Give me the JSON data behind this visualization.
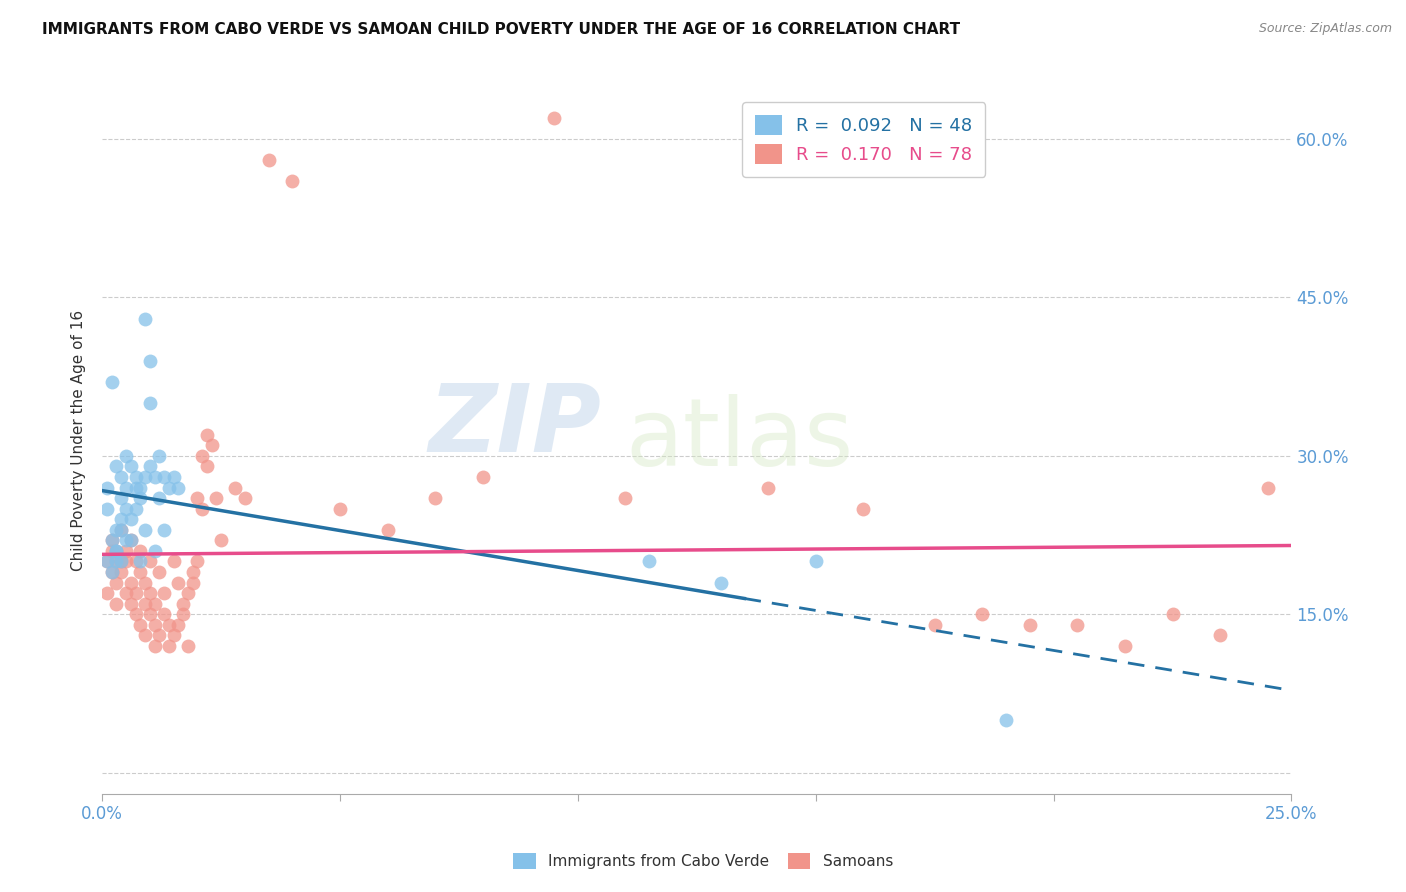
{
  "title": "IMMIGRANTS FROM CABO VERDE VS SAMOAN CHILD POVERTY UNDER THE AGE OF 16 CORRELATION CHART",
  "source": "Source: ZipAtlas.com",
  "ylabel_label": "Child Poverty Under the Age of 16",
  "xlim": [
    0,
    0.25
  ],
  "ylim": [
    -0.02,
    0.65
  ],
  "color_blue": "#85c1e9",
  "color_pink": "#f1948a",
  "color_blue_line": "#2471a3",
  "color_pink_line": "#e74c8b",
  "color_blue_right": "#5dade2",
  "watermark_zip": "ZIP",
  "watermark_atlas": "atlas",
  "cabo_verde_x": [
    0.001,
    0.002,
    0.003,
    0.001,
    0.002,
    0.003,
    0.004,
    0.002,
    0.001,
    0.003,
    0.004,
    0.003,
    0.005,
    0.004,
    0.003,
    0.004,
    0.005,
    0.006,
    0.005,
    0.004,
    0.006,
    0.005,
    0.007,
    0.006,
    0.007,
    0.008,
    0.007,
    0.009,
    0.008,
    0.01,
    0.009,
    0.01,
    0.011,
    0.012,
    0.01,
    0.013,
    0.012,
    0.014,
    0.015,
    0.016,
    0.008,
    0.009,
    0.011,
    0.013,
    0.115,
    0.13,
    0.15,
    0.19
  ],
  "cabo_verde_y": [
    0.2,
    0.22,
    0.21,
    0.25,
    0.19,
    0.23,
    0.24,
    0.37,
    0.27,
    0.2,
    0.26,
    0.29,
    0.22,
    0.23,
    0.21,
    0.28,
    0.25,
    0.24,
    0.27,
    0.2,
    0.22,
    0.3,
    0.27,
    0.29,
    0.28,
    0.26,
    0.25,
    0.28,
    0.27,
    0.29,
    0.43,
    0.39,
    0.28,
    0.3,
    0.35,
    0.28,
    0.26,
    0.27,
    0.28,
    0.27,
    0.2,
    0.23,
    0.21,
    0.23,
    0.2,
    0.18,
    0.2,
    0.05
  ],
  "samoan_x": [
    0.001,
    0.002,
    0.003,
    0.001,
    0.002,
    0.003,
    0.004,
    0.003,
    0.002,
    0.004,
    0.005,
    0.004,
    0.003,
    0.005,
    0.006,
    0.005,
    0.006,
    0.007,
    0.006,
    0.007,
    0.008,
    0.007,
    0.008,
    0.009,
    0.008,
    0.009,
    0.01,
    0.009,
    0.01,
    0.011,
    0.01,
    0.011,
    0.012,
    0.011,
    0.013,
    0.012,
    0.014,
    0.013,
    0.015,
    0.014,
    0.016,
    0.015,
    0.017,
    0.016,
    0.018,
    0.017,
    0.019,
    0.018,
    0.02,
    0.019,
    0.021,
    0.02,
    0.022,
    0.021,
    0.023,
    0.022,
    0.025,
    0.024,
    0.028,
    0.03,
    0.035,
    0.04,
    0.05,
    0.06,
    0.07,
    0.08,
    0.095,
    0.11,
    0.14,
    0.16,
    0.175,
    0.185,
    0.195,
    0.205,
    0.215,
    0.225,
    0.235,
    0.245
  ],
  "samoan_y": [
    0.2,
    0.19,
    0.21,
    0.17,
    0.22,
    0.2,
    0.19,
    0.18,
    0.21,
    0.2,
    0.17,
    0.23,
    0.16,
    0.21,
    0.18,
    0.2,
    0.16,
    0.15,
    0.22,
    0.17,
    0.19,
    0.2,
    0.14,
    0.16,
    0.21,
    0.13,
    0.15,
    0.18,
    0.2,
    0.14,
    0.17,
    0.12,
    0.19,
    0.16,
    0.15,
    0.13,
    0.12,
    0.17,
    0.13,
    0.14,
    0.18,
    0.2,
    0.16,
    0.14,
    0.17,
    0.15,
    0.19,
    0.12,
    0.2,
    0.18,
    0.3,
    0.26,
    0.29,
    0.25,
    0.31,
    0.32,
    0.22,
    0.26,
    0.27,
    0.26,
    0.58,
    0.56,
    0.25,
    0.23,
    0.26,
    0.28,
    0.62,
    0.26,
    0.27,
    0.25,
    0.14,
    0.15,
    0.14,
    0.14,
    0.12,
    0.15,
    0.13,
    0.27
  ]
}
